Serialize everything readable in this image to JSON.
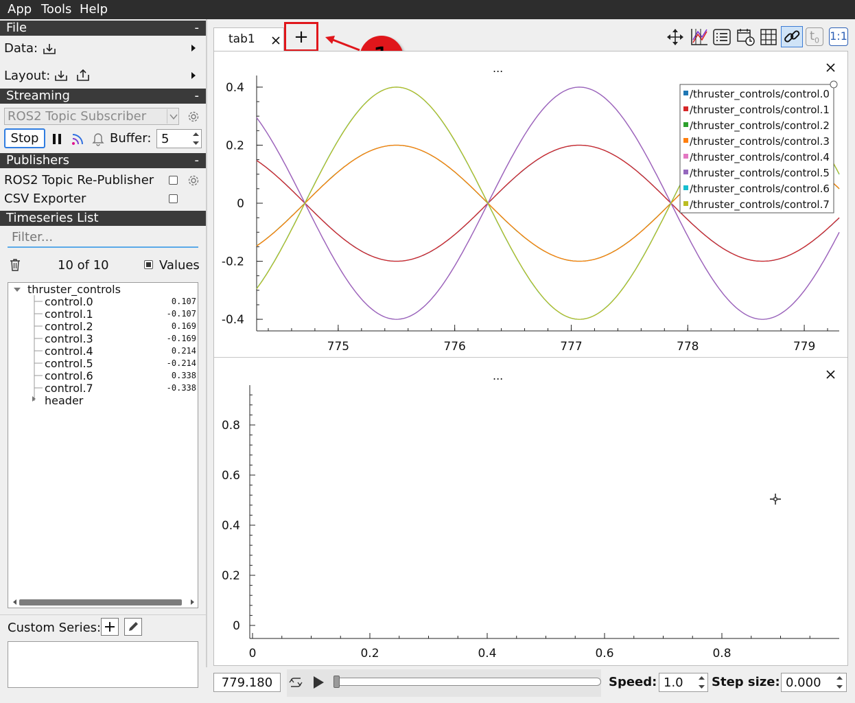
{
  "menubar": {
    "items": [
      "App",
      "Tools",
      "Help"
    ]
  },
  "file_section": {
    "title": "File",
    "collapse": "-",
    "data_label": "Data:",
    "layout_label": "Layout:"
  },
  "streaming_section": {
    "title": "Streaming",
    "collapse": "-",
    "source_select": "ROS2 Topic Subscriber",
    "stop_label": "Stop",
    "buffer_label": "Buffer:",
    "buffer_value": "5"
  },
  "publishers_section": {
    "title": "Publishers",
    "collapse": "-",
    "items": [
      {
        "label": "ROS2 Topic Re-Publisher"
      },
      {
        "label": "CSV Exporter"
      }
    ]
  },
  "timeseries_section": {
    "title": "Timeseries List",
    "filter_placeholder": "Filter...",
    "count": "10 of 10",
    "values_label": "Values",
    "tree": {
      "root": "thruster_controls",
      "children": [
        {
          "name": "control.0",
          "value": "0.107"
        },
        {
          "name": "control.1",
          "value": "-0.107"
        },
        {
          "name": "control.2",
          "value": "0.169"
        },
        {
          "name": "control.3",
          "value": "-0.169"
        },
        {
          "name": "control.4",
          "value": "0.214"
        },
        {
          "name": "control.5",
          "value": "-0.214"
        },
        {
          "name": "control.6",
          "value": "0.338"
        },
        {
          "name": "control.7",
          "value": "-0.338"
        }
      ],
      "collapsed": "header"
    }
  },
  "custom_series": {
    "label": "Custom Series:"
  },
  "tabs": {
    "items": [
      "tab1"
    ],
    "add_label": "+"
  },
  "annotation": {
    "number": "1",
    "color": "#e0161b"
  },
  "top_plot": {
    "title": "..."
  },
  "bottom_plot": {
    "title": "..."
  },
  "bottombar": {
    "time_value": "779.180",
    "speed_label": "Speed:",
    "speed_value": "1.0",
    "step_label": "Step size:",
    "step_value": "0.000"
  },
  "chart_data": [
    {
      "type": "line",
      "title": "",
      "xlabel": "",
      "ylabel": "",
      "xlim": [
        774.3,
        779.3
      ],
      "ylim": [
        -0.44,
        0.44
      ],
      "x_ticks": [
        "775",
        "776",
        "777",
        "778",
        "779"
      ],
      "y_ticks": [
        "0.4",
        "0.2",
        "0",
        "-0.2",
        "-0.4"
      ],
      "legend_position": "top-right",
      "series": [
        {
          "name": "/thruster_controls/control.0",
          "color": "#1f77b4",
          "amplitude": 0.2,
          "period": 3.14159,
          "peak_x": 773.93,
          "offset": 0
        },
        {
          "name": "/thruster_controls/control.1",
          "color": "#d62728",
          "amplitude": 0.2,
          "period": 3.14159,
          "peak_x": 777.07,
          "offset": 0
        },
        {
          "name": "/thruster_controls/control.2",
          "color": "#2ca02c",
          "amplitude": 0.2,
          "period": 3.14159,
          "peak_x": 778.64,
          "offset": 0
        },
        {
          "name": "/thruster_controls/control.3",
          "color": "#ff7f0e",
          "amplitude": 0.2,
          "period": 3.14159,
          "peak_x": 775.5,
          "offset": 0
        },
        {
          "name": "/thruster_controls/control.4",
          "color": "#e377c2",
          "amplitude": 0.4,
          "period": 3.14159,
          "peak_x": 773.93,
          "offset": 0
        },
        {
          "name": "/thruster_controls/control.5",
          "color": "#9467bd",
          "amplitude": 0.4,
          "period": 3.14159,
          "peak_x": 777.07,
          "offset": 0
        },
        {
          "name": "/thruster_controls/control.6",
          "color": "#17becf",
          "amplitude": 0.4,
          "period": 3.14159,
          "peak_x": 778.64,
          "offset": 0
        },
        {
          "name": "/thruster_controls/control.7",
          "color": "#bcbd22",
          "amplitude": 0.4,
          "period": 3.14159,
          "peak_x": 775.5,
          "offset": 0
        }
      ]
    },
    {
      "type": "line",
      "title": "",
      "xlabel": "",
      "ylabel": "",
      "xlim": [
        0,
        1
      ],
      "ylim": [
        0,
        1
      ],
      "x_ticks": [
        "0",
        "0.2",
        "0.4",
        "0.6",
        "0.8"
      ],
      "y_ticks": [
        "0.8",
        "0.6",
        "0.4",
        "0.2",
        "0"
      ],
      "series": []
    }
  ]
}
